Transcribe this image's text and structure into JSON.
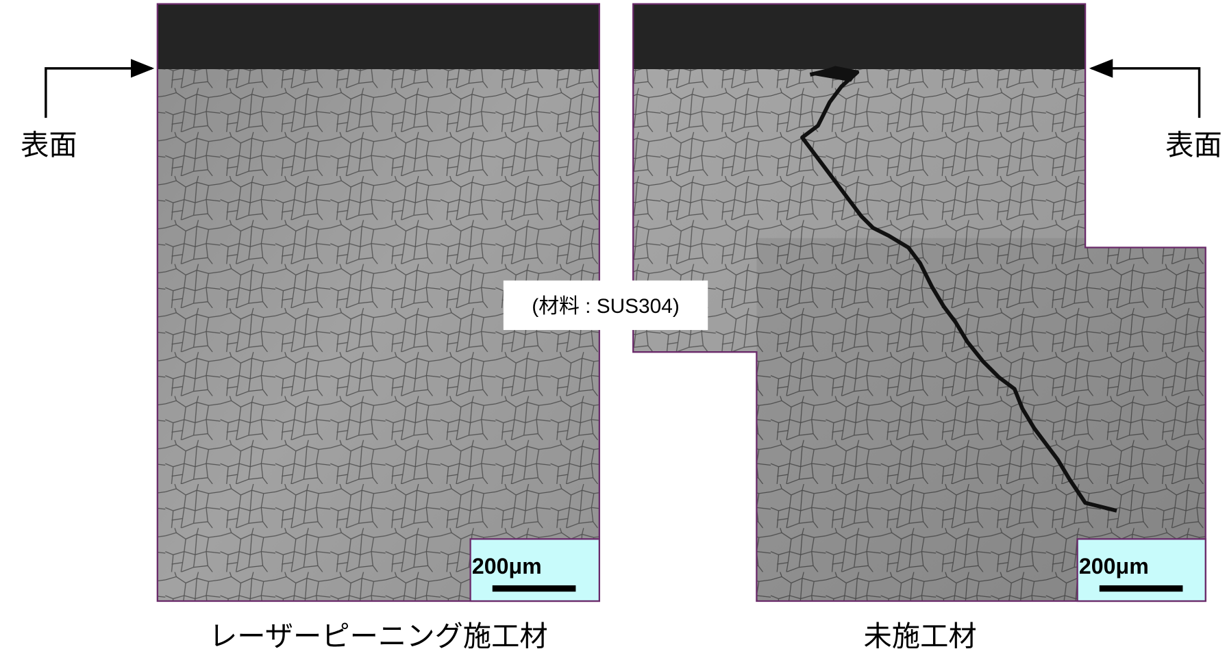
{
  "material_note": "(材料 : SUS304)",
  "panels": [
    {
      "surface_label": "表面",
      "scale_bar": "200μm",
      "caption": "レーザーピーニング施工材"
    },
    {
      "surface_label": "表面",
      "scale_bar": "200μm",
      "caption": "未施工材"
    }
  ]
}
